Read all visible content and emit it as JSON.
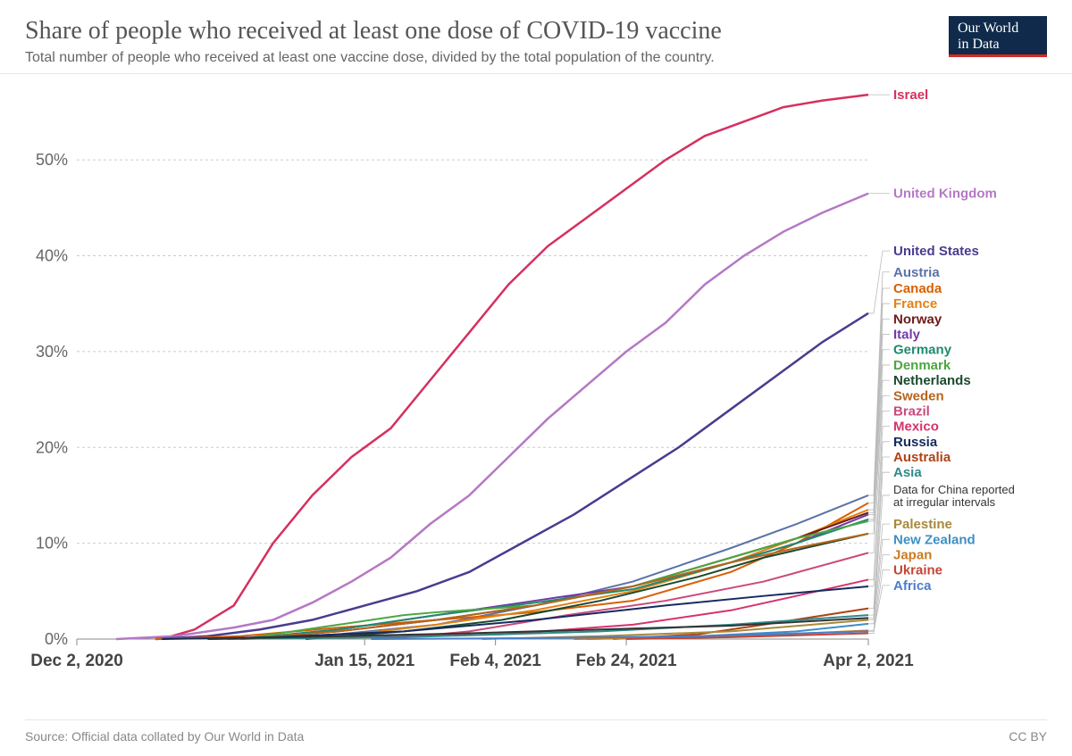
{
  "title": "Share of people who received at least one dose of COVID-19 vaccine",
  "subtitle": "Total number of people who received at least one vaccine dose, divided by the total population of the country.",
  "logo_line1": "Our World",
  "logo_line2": "in Data",
  "source": "Source: Official data collated by Our World in Data",
  "license": "CC BY",
  "chart": {
    "type": "line",
    "background_color": "#ffffff",
    "grid_color": "#cccccc",
    "grid_dash": "3 3",
    "line_width": 2,
    "prominent_line_width": 2.5,
    "x_domain": [
      0,
      121
    ],
    "y_domain": [
      0,
      57
    ],
    "y_ticks": [
      0,
      10,
      20,
      30,
      40,
      50
    ],
    "y_tick_labels": [
      "0%",
      "10%",
      "20%",
      "30%",
      "40%",
      "50%"
    ],
    "y_tick_fontsize": 18,
    "y_tick_color": "#666666",
    "x_ticks": [
      0,
      44,
      64,
      84,
      121
    ],
    "x_tick_labels": [
      "Dec 2, 2020",
      "Jan 15, 2021",
      "Feb 4, 2021",
      "Feb 24, 2021",
      "Apr 2, 2021"
    ],
    "x_tick_fontsize": 19,
    "x_tick_color": "#444444",
    "x_tick_fontweight": 600,
    "label_fontsize": 15,
    "label_fontweight": 600,
    "leader_color": "#bbbbbb",
    "series": [
      {
        "name": "Israel",
        "color": "#d5305e",
        "prominent": true,
        "data": [
          [
            13,
            0
          ],
          [
            18,
            1
          ],
          [
            24,
            3.5
          ],
          [
            30,
            10
          ],
          [
            36,
            15
          ],
          [
            42,
            19
          ],
          [
            48,
            22
          ],
          [
            54,
            27
          ],
          [
            60,
            32
          ],
          [
            66,
            37
          ],
          [
            72,
            41
          ],
          [
            78,
            44
          ],
          [
            84,
            47
          ],
          [
            90,
            50
          ],
          [
            96,
            52.5
          ],
          [
            102,
            54
          ],
          [
            108,
            55.5
          ],
          [
            114,
            56.2
          ],
          [
            121,
            56.8
          ]
        ]
      },
      {
        "name": "United Kingdom",
        "color": "#b578c5",
        "prominent": true,
        "data": [
          [
            6,
            0
          ],
          [
            15,
            0.3
          ],
          [
            24,
            1.2
          ],
          [
            30,
            2
          ],
          [
            36,
            3.8
          ],
          [
            42,
            6
          ],
          [
            48,
            8.5
          ],
          [
            54,
            12
          ],
          [
            60,
            15
          ],
          [
            66,
            19
          ],
          [
            72,
            23
          ],
          [
            78,
            26.5
          ],
          [
            84,
            30
          ],
          [
            90,
            33
          ],
          [
            96,
            37
          ],
          [
            102,
            40
          ],
          [
            108,
            42.5
          ],
          [
            114,
            44.5
          ],
          [
            121,
            46.5
          ]
        ]
      },
      {
        "name": "United States",
        "color": "#4a3b8f",
        "prominent": true,
        "data": [
          [
            12,
            0
          ],
          [
            20,
            0.3
          ],
          [
            28,
            1
          ],
          [
            36,
            2
          ],
          [
            44,
            3.5
          ],
          [
            52,
            5
          ],
          [
            60,
            7
          ],
          [
            68,
            10
          ],
          [
            76,
            13
          ],
          [
            84,
            16.5
          ],
          [
            92,
            20
          ],
          [
            100,
            24
          ],
          [
            108,
            28
          ],
          [
            114,
            31
          ],
          [
            121,
            34
          ]
        ]
      },
      {
        "name": "Austria",
        "color": "#5b72a8",
        "data": [
          [
            25,
            0
          ],
          [
            40,
            0.5
          ],
          [
            55,
            1.5
          ],
          [
            70,
            3.5
          ],
          [
            85,
            6
          ],
          [
            100,
            9.5
          ],
          [
            110,
            12
          ],
          [
            121,
            15
          ]
        ]
      },
      {
        "name": "Canada",
        "color": "#d95f02",
        "data": [
          [
            12,
            0
          ],
          [
            25,
            0.3
          ],
          [
            40,
            1.2
          ],
          [
            55,
            2
          ],
          [
            70,
            2.8
          ],
          [
            85,
            4
          ],
          [
            100,
            7
          ],
          [
            110,
            10
          ],
          [
            121,
            14.2
          ]
        ]
      },
      {
        "name": "France",
        "color": "#e08214",
        "data": [
          [
            25,
            0
          ],
          [
            40,
            0.3
          ],
          [
            55,
            1.5
          ],
          [
            70,
            3
          ],
          [
            85,
            5
          ],
          [
            100,
            8
          ],
          [
            110,
            10.5
          ],
          [
            121,
            13.5
          ]
        ]
      },
      {
        "name": "Norway",
        "color": "#6e1919",
        "data": [
          [
            25,
            0
          ],
          [
            40,
            0.8
          ],
          [
            55,
            2
          ],
          [
            70,
            3.5
          ],
          [
            85,
            5.5
          ],
          [
            100,
            8.5
          ],
          [
            110,
            10.5
          ],
          [
            121,
            13.2
          ]
        ]
      },
      {
        "name": "Italy",
        "color": "#7339a5",
        "data": [
          [
            25,
            0
          ],
          [
            40,
            1
          ],
          [
            55,
            2.5
          ],
          [
            70,
            4
          ],
          [
            85,
            5.5
          ],
          [
            100,
            8
          ],
          [
            110,
            10
          ],
          [
            121,
            13
          ]
        ]
      },
      {
        "name": "Germany",
        "color": "#1f8a6e",
        "data": [
          [
            25,
            0
          ],
          [
            40,
            1
          ],
          [
            55,
            2.5
          ],
          [
            70,
            3.8
          ],
          [
            85,
            5.2
          ],
          [
            100,
            8
          ],
          [
            110,
            10
          ],
          [
            121,
            12.5
          ]
        ]
      },
      {
        "name": "Denmark",
        "color": "#4ca642",
        "data": [
          [
            25,
            0
          ],
          [
            40,
            1.5
          ],
          [
            50,
            2.5
          ],
          [
            55,
            2.8
          ],
          [
            70,
            3.5
          ],
          [
            85,
            5.5
          ],
          [
            100,
            8.5
          ],
          [
            110,
            10.5
          ],
          [
            121,
            12.3
          ]
        ]
      },
      {
        "name": "Netherlands",
        "color": "#1a4a2e",
        "data": [
          [
            35,
            0
          ],
          [
            50,
            0.8
          ],
          [
            65,
            2
          ],
          [
            80,
            4
          ],
          [
            95,
            6.5
          ],
          [
            105,
            8.5
          ],
          [
            121,
            11
          ]
        ]
      },
      {
        "name": "Sweden",
        "color": "#b5651d",
        "data": [
          [
            25,
            0
          ],
          [
            40,
            0.8
          ],
          [
            55,
            2
          ],
          [
            70,
            3.5
          ],
          [
            85,
            5.5
          ],
          [
            100,
            8
          ],
          [
            110,
            9.5
          ],
          [
            121,
            11
          ]
        ]
      },
      {
        "name": "Brazil",
        "color": "#c94a7c",
        "data": [
          [
            47,
            0
          ],
          [
            60,
            0.8
          ],
          [
            75,
            2.5
          ],
          [
            90,
            4
          ],
          [
            105,
            6
          ],
          [
            121,
            9
          ]
        ]
      },
      {
        "name": "Mexico",
        "color": "#d6336c",
        "data": [
          [
            23,
            0
          ],
          [
            45,
            0.2
          ],
          [
            65,
            0.5
          ],
          [
            85,
            1.5
          ],
          [
            100,
            3
          ],
          [
            110,
            4.5
          ],
          [
            121,
            6.2
          ]
        ]
      },
      {
        "name": "Russia",
        "color": "#152a5e",
        "data": [
          [
            13,
            0
          ],
          [
            30,
            0.2
          ],
          [
            50,
            0.8
          ],
          [
            70,
            2
          ],
          [
            90,
            3.5
          ],
          [
            105,
            4.5
          ],
          [
            121,
            5.5
          ]
        ]
      },
      {
        "name": "Australia",
        "color": "#b04215",
        "data": [
          [
            82,
            0
          ],
          [
            95,
            0.5
          ],
          [
            105,
            1.5
          ],
          [
            121,
            3.2
          ]
        ]
      },
      {
        "name": "Asia",
        "color": "#2d8a88",
        "data": [
          [
            20,
            0
          ],
          [
            50,
            0.2
          ],
          [
            80,
            0.8
          ],
          [
            100,
            1.5
          ],
          [
            121,
            2.5
          ]
        ]
      },
      {
        "name": "Data for China reported at irregular intervals",
        "color": "#333333",
        "small": true,
        "data": [
          [
            20,
            0
          ],
          [
            40,
            0.3
          ],
          [
            60,
            0.6
          ],
          [
            80,
            1
          ],
          [
            100,
            1.4
          ],
          [
            121,
            2.2
          ]
        ]
      },
      {
        "name": "Palestine",
        "color": "#a8893a",
        "data": [
          [
            62,
            0
          ],
          [
            80,
            0.3
          ],
          [
            100,
            0.8
          ],
          [
            121,
            2
          ]
        ]
      },
      {
        "name": "New Zealand",
        "color": "#3e8fc4",
        "data": [
          [
            78,
            0
          ],
          [
            95,
            0.3
          ],
          [
            110,
            0.8
          ],
          [
            121,
            1.6
          ]
        ]
      },
      {
        "name": "Japan",
        "color": "#cc7a1e",
        "data": [
          [
            76,
            0
          ],
          [
            90,
            0.1
          ],
          [
            105,
            0.4
          ],
          [
            121,
            0.9
          ]
        ]
      },
      {
        "name": "Ukraine",
        "color": "#c44536",
        "data": [
          [
            84,
            0
          ],
          [
            100,
            0.2
          ],
          [
            121,
            0.6
          ]
        ]
      },
      {
        "name": "Africa",
        "color": "#4a7ec9",
        "data": [
          [
            45,
            0
          ],
          [
            70,
            0.1
          ],
          [
            95,
            0.3
          ],
          [
            121,
            0.8
          ]
        ]
      }
    ],
    "label_slots": [
      {
        "series": "Israel",
        "y": 56.8
      },
      {
        "series": "United Kingdom",
        "y": 46.5
      },
      {
        "series": "United States",
        "y": 40.5
      },
      {
        "series": "Austria",
        "y": 38.3
      },
      {
        "series": "Canada",
        "y": 36.6
      },
      {
        "series": "France",
        "y": 35
      },
      {
        "series": "Norway",
        "y": 33.4
      },
      {
        "series": "Italy",
        "y": 31.8
      },
      {
        "series": "Germany",
        "y": 30.2
      },
      {
        "series": "Denmark",
        "y": 28.6
      },
      {
        "series": "Netherlands",
        "y": 27
      },
      {
        "series": "Sweden",
        "y": 25.4
      },
      {
        "series": "Brazil",
        "y": 23.8
      },
      {
        "series": "Mexico",
        "y": 22.2
      },
      {
        "series": "Russia",
        "y": 20.6
      },
      {
        "series": "Australia",
        "y": 19
      },
      {
        "series": "Asia",
        "y": 17.4
      },
      {
        "series": "Data for China reported at irregular intervals",
        "y": 15
      },
      {
        "series": "Palestine",
        "y": 12
      },
      {
        "series": "New Zealand",
        "y": 10.4
      },
      {
        "series": "Japan",
        "y": 8.8
      },
      {
        "series": "Ukraine",
        "y": 7.2
      },
      {
        "series": "Africa",
        "y": 5.6
      }
    ]
  }
}
